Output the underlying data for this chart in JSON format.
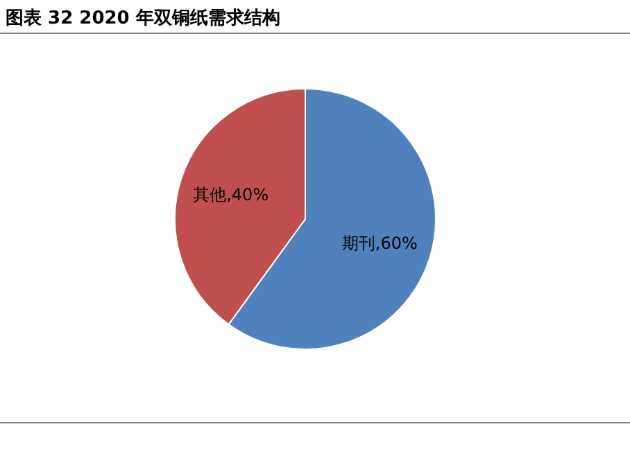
{
  "chart_data": {
    "type": "pie",
    "title": "图表 32 2020 年双铜纸需求结构",
    "categories": [
      "期刊",
      "其他"
    ],
    "values": [
      60,
      40
    ],
    "colors": [
      "#4f81bd",
      "#c0504d"
    ],
    "value_labels": [
      "60%",
      "40%"
    ]
  }
}
